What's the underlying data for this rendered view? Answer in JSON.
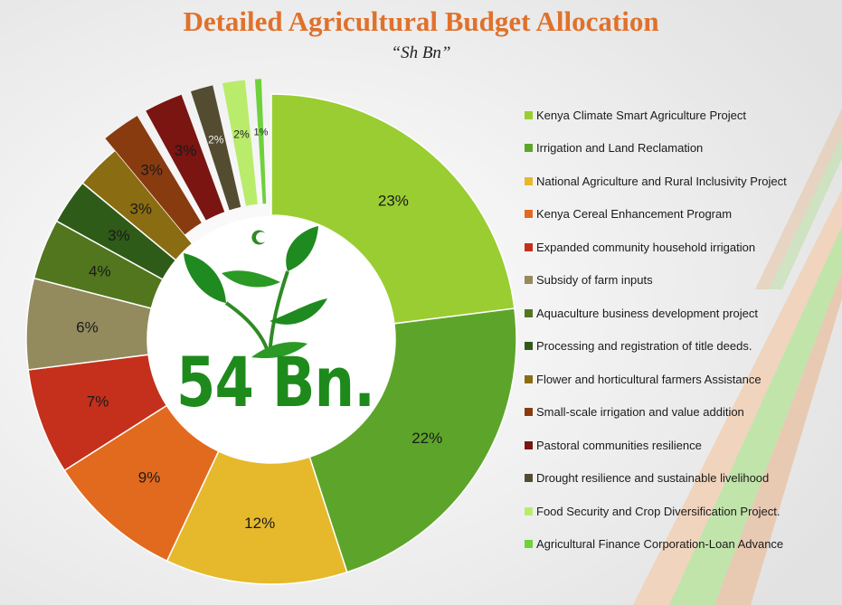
{
  "chart_data": {
    "type": "pie",
    "title": "Detailed Agricultural Budget Allocation",
    "subtitle": "“Sh Bn”",
    "center_label": "54 Bn.",
    "legend_position": "right",
    "categories": [
      "Kenya Climate Smart Agriculture Project",
      "Irrigation and Land Reclamation",
      "National Agriculture and Rural Inclusivity Project",
      "Kenya Cereal Enhancement Program",
      "Expanded community household irrigation",
      "Subsidy of farm inputs",
      "Aquaculture business development project",
      "Processing and registration of title deeds.",
      "Flower and horticultural farmers Assistance",
      "Small-scale irrigation and value addition",
      "Pastoral communities resilience",
      "Drought resilience and sustainable livelihood",
      "Food Security and Crop Diversification Project.",
      "Agricultural Finance Corporation-Loan Advance"
    ],
    "values": [
      23,
      22,
      12,
      9,
      7,
      6,
      4,
      3,
      3,
      3,
      3,
      2,
      2,
      1
    ],
    "value_labels": [
      "23%",
      "22%",
      "12%",
      "9%",
      "7%",
      "6%",
      "4%",
      "3%",
      "3%",
      "3%",
      "3%",
      "2%",
      "2%",
      "1%"
    ],
    "colors": [
      "#9acd32",
      "#5da52a",
      "#e6b92c",
      "#e26a1e",
      "#c4301c",
      "#938b5e",
      "#51761e",
      "#2f5b18",
      "#8a6c12",
      "#893b10",
      "#7a1512",
      "#534c31",
      "#b9ec6b",
      "#6fd13c"
    ],
    "exploded": [
      false,
      false,
      false,
      false,
      false,
      false,
      false,
      false,
      false,
      true,
      true,
      true,
      true,
      true
    ]
  }
}
